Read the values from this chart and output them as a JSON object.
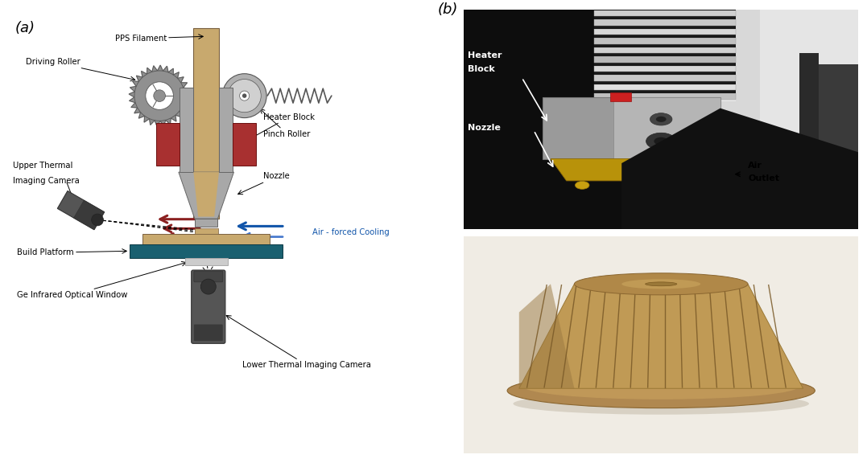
{
  "fig_width": 10.77,
  "fig_height": 5.76,
  "bg_color": "#ffffff",
  "panel_a_label": "(a)",
  "panel_b_label": "(b)",
  "labels": {
    "pps_filament": "PPS Filament",
    "driving_roller": "Driving Roller",
    "pinch_roller": "Pinch Roller",
    "upper_camera": "Upper Thermal\nImaging Camera",
    "heater_block": "Heater Block",
    "nozzle": "Nozzle",
    "build_platform": "Build Platform",
    "air_cooling": "Air - forced Cooling",
    "ge_window": "Ge Infrared Optical Window",
    "lower_camera": "Lower Thermal Imaging Camera",
    "heater_block_b": "Heater\nBlock",
    "nozzle_b": "Nozzle",
    "air_outlet": "Air\nOutlet"
  },
  "colors": {
    "filament_tan": "#c8a96e",
    "nozzle_gray": "#a8a8a8",
    "nozzle_gray_dark": "#888888",
    "heater_red": "#a83030",
    "platform_tan": "#c8a96e",
    "platform_blue": "#1a6070",
    "window_lightgray": "#cccccc",
    "camera_dark": "#555555",
    "camera_darker": "#444444",
    "camera_darkest": "#333333",
    "heat_arrow": "#8b2020",
    "air_arrow_dark": "#1155aa",
    "air_arrow_light": "#88bbee",
    "gear_gray": "#909090",
    "gear_edge": "#555555",
    "pinch_gray": "#b0b0b0",
    "text_black": "#000000",
    "spring_gray": "#555555",
    "white_bg": "#ffffff"
  }
}
